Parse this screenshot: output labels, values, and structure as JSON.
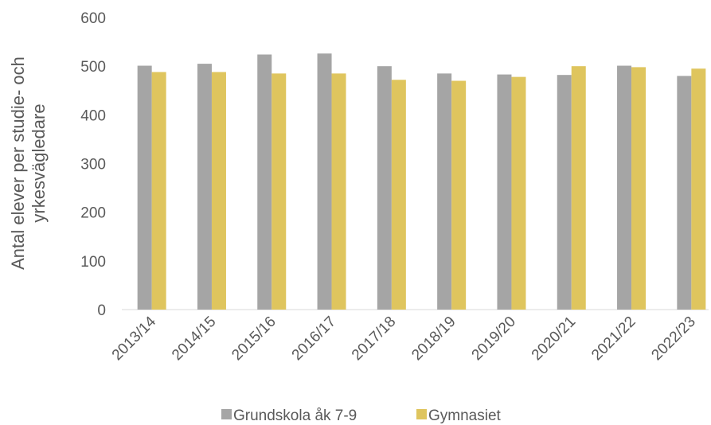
{
  "chart_data": {
    "type": "bar",
    "ylabel": [
      "Antal elever per studie- och",
      "yrkesvägledare"
    ],
    "categories": [
      "2013/14",
      "2014/15",
      "2015/16",
      "2016/17",
      "2017/18",
      "2018/19",
      "2019/20",
      "2020/21",
      "2021/22",
      "2022/23"
    ],
    "series": [
      {
        "name": "Grundskola åk 7-9",
        "color": "#a5a5a5",
        "values": [
          501,
          505,
          524,
          526,
          500,
          485,
          483,
          482,
          501,
          480
        ]
      },
      {
        "name": "Gymnasiet",
        "color": "#dfc55e",
        "values": [
          488,
          488,
          485,
          485,
          472,
          470,
          478,
          500,
          498,
          495
        ]
      }
    ],
    "ylim": [
      0,
      600
    ],
    "yticks": [
      0,
      100,
      200,
      300,
      400,
      500,
      600
    ],
    "grid": false,
    "legend": "bottom"
  }
}
